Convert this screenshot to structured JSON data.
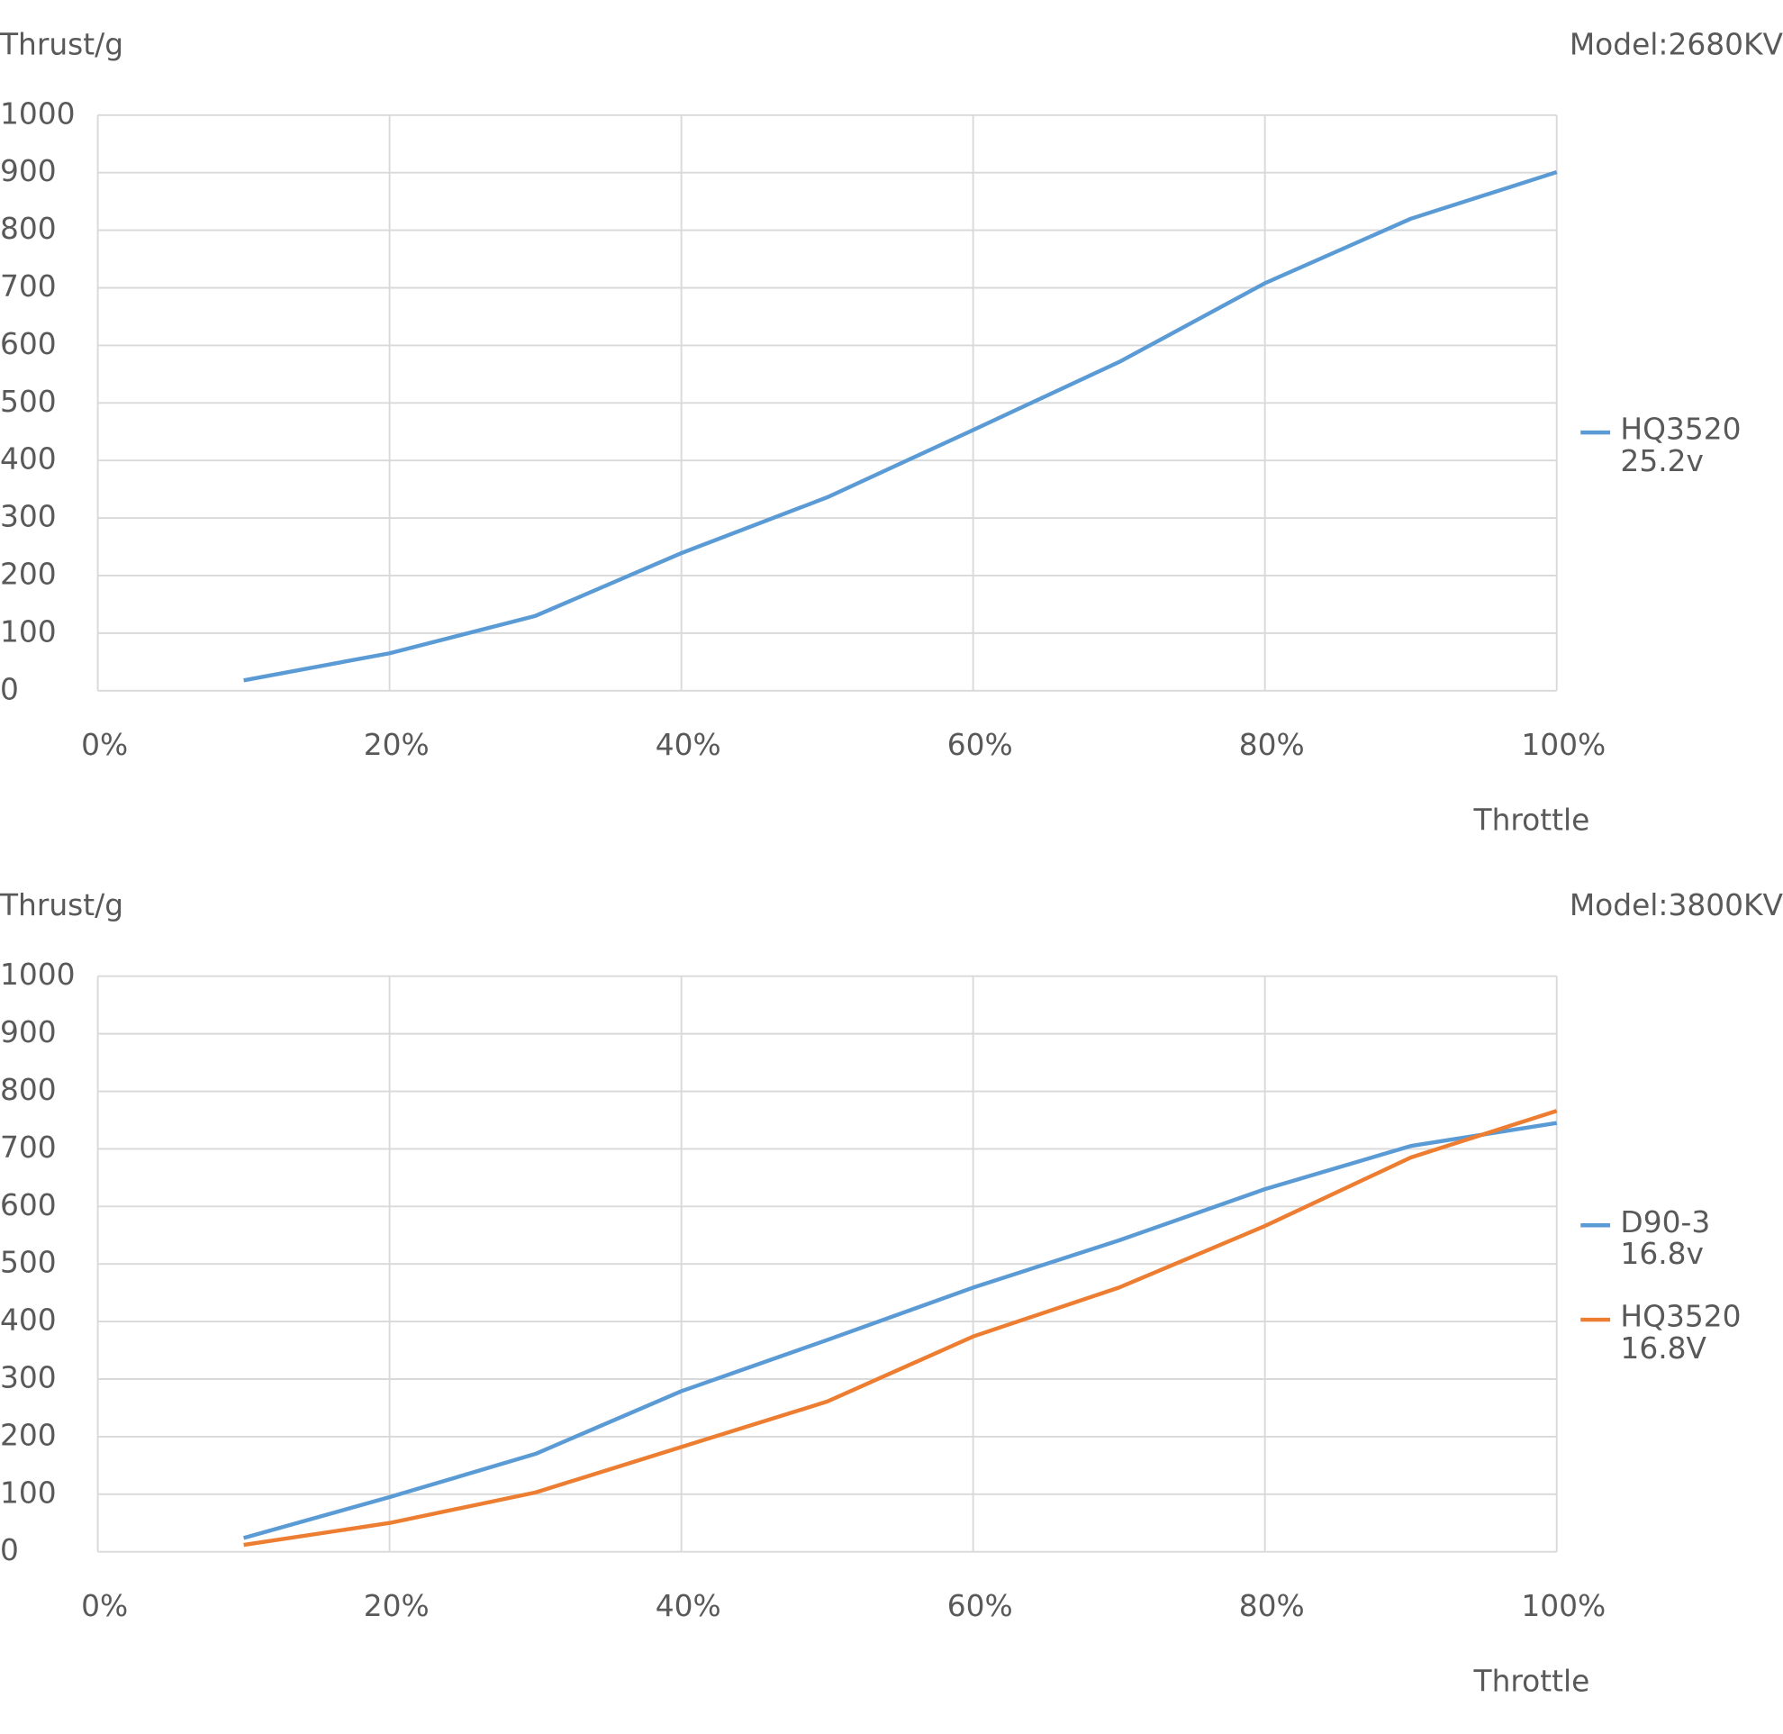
{
  "chart_data": [
    {
      "type": "line",
      "y_label": "Thrust/g",
      "x_label": "Throttle",
      "annotation": "Model:2680KV",
      "x": [
        10,
        20,
        30,
        40,
        50,
        60,
        70,
        80,
        90,
        100
      ],
      "series": [
        {
          "name": "HQ3520 25.2v",
          "color": "#5b9bd5",
          "values": [
            18,
            65,
            130,
            239,
            336,
            453,
            571,
            708,
            820,
            901
          ]
        }
      ],
      "xlim": [
        0,
        100
      ],
      "xticks": [
        {
          "value": 0,
          "label": "0%"
        },
        {
          "value": 20,
          "label": "20%"
        },
        {
          "value": 40,
          "label": "40%"
        },
        {
          "value": 60,
          "label": "60%"
        },
        {
          "value": 80,
          "label": "80%"
        },
        {
          "value": 100,
          "label": "100%"
        }
      ],
      "ylim": [
        0,
        1000
      ],
      "yticks": [
        0,
        100,
        200,
        300,
        400,
        500,
        600,
        700,
        800,
        900,
        1000
      ],
      "grid": true,
      "legend": "right"
    },
    {
      "type": "line",
      "y_label": "Thrust/g",
      "x_label": "Throttle",
      "annotation": "Model:3800KV",
      "x": [
        10,
        20,
        30,
        40,
        50,
        60,
        70,
        80,
        90,
        100
      ],
      "series": [
        {
          "name": "D90-3 16.8v",
          "color": "#5b9bd5",
          "values": [
            24,
            95,
            170,
            279,
            368,
            459,
            541,
            630,
            705,
            745
          ]
        },
        {
          "name": "HQ3520 16.8V",
          "color": "#ed7d31",
          "values": [
            12,
            50,
            103,
            182,
            261,
            374,
            459,
            566,
            685,
            766
          ]
        }
      ],
      "xlim": [
        0,
        100
      ],
      "xticks": [
        {
          "value": 0,
          "label": "0%"
        },
        {
          "value": 20,
          "label": "20%"
        },
        {
          "value": 40,
          "label": "40%"
        },
        {
          "value": 60,
          "label": "60%"
        },
        {
          "value": 80,
          "label": "80%"
        },
        {
          "value": 100,
          "label": "100%"
        }
      ],
      "ylim": [
        0,
        1000
      ],
      "yticks": [
        0,
        100,
        200,
        300,
        400,
        500,
        600,
        700,
        800,
        900,
        1000
      ],
      "grid": true,
      "legend": "right"
    }
  ]
}
